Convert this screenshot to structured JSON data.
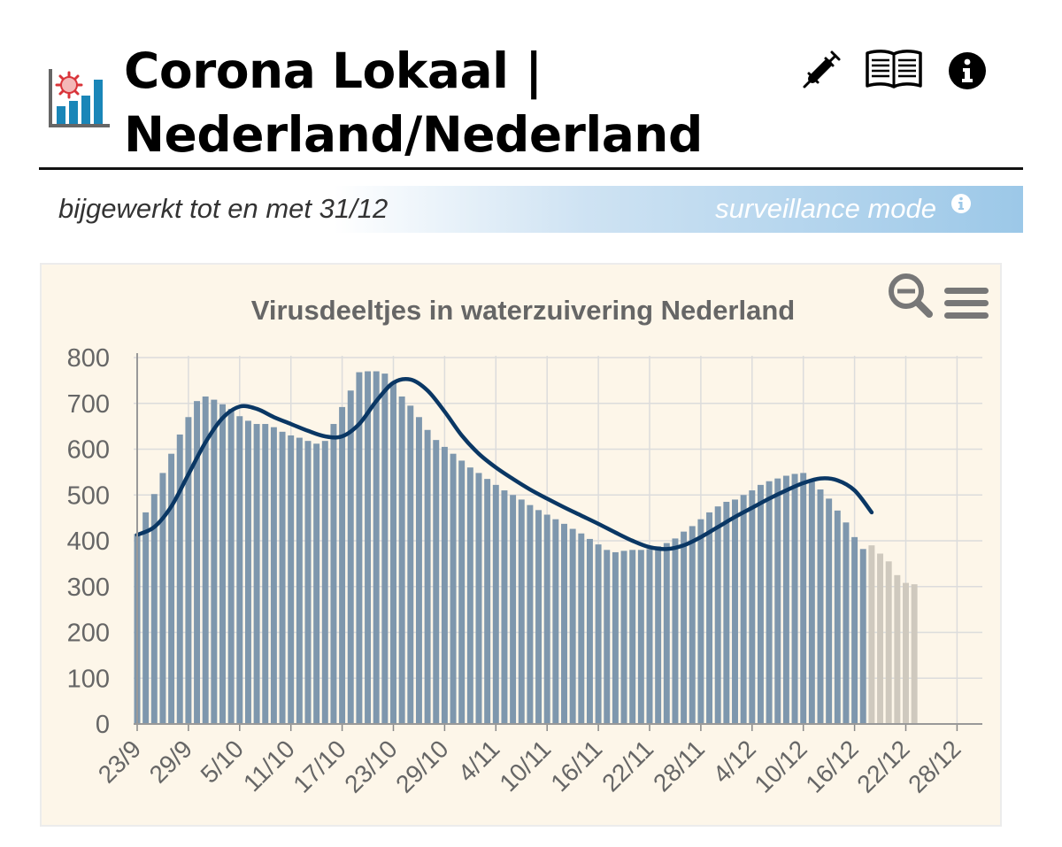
{
  "header": {
    "title_line1": "Corona Lokaal |",
    "title_line2": "Nederland/Nederland",
    "icons": [
      "chart-virus-logo-icon",
      "syringe-icon",
      "book-icon",
      "info-icon"
    ]
  },
  "update_bar": {
    "updated_text": "bijgewerkt tot en met 31/12",
    "mode_text": "surveillance mode"
  },
  "colors": {
    "bar": "#7e97ad",
    "bar_projected": "#cfc9be",
    "line": "#0a3764",
    "card_bg": "#fdf6e9",
    "grid": "#dcdcdc",
    "axis_text": "#666666",
    "bar_gradient_end": "#9cc8e8"
  },
  "chart_data": {
    "type": "bar",
    "title": "Virusdeeltjes in waterzuivering Nederland",
    "xlabel": "",
    "ylabel": "",
    "ylim": [
      0,
      800
    ],
    "yticks": [
      0,
      100,
      200,
      300,
      400,
      500,
      600,
      700,
      800
    ],
    "x_tick_labels": [
      "23/9",
      "29/9",
      "5/10",
      "11/10",
      "17/10",
      "23/10",
      "29/10",
      "4/11",
      "10/11",
      "16/11",
      "22/11",
      "28/11",
      "4/12",
      "10/12",
      "16/12",
      "22/12",
      "28/12"
    ],
    "x_tick_spacing_days": 6,
    "grid": true,
    "toolbar_icons": [
      "zoom-out-icon",
      "menu-icon"
    ],
    "series": [
      {
        "type": "bar",
        "start_date": "23/9",
        "values": [
          415,
          462,
          502,
          548,
          590,
          632,
          670,
          705,
          715,
          708,
          698,
          688,
          672,
          662,
          655,
          655,
          648,
          638,
          630,
          625,
          618,
          612,
          618,
          655,
          692,
          728,
          768,
          770,
          770,
          765,
          745,
          715,
          695,
          670,
          642,
          620,
          605,
          590,
          575,
          560,
          548,
          535,
          522,
          510,
          500,
          490,
          478,
          467,
          457,
          447,
          437,
          426,
          416,
          404,
          392,
          380,
          375,
          378,
          380,
          380,
          382,
          388,
          395,
          405,
          420,
          432,
          447,
          462,
          475,
          485,
          490,
          500,
          510,
          522,
          530,
          536,
          542,
          546,
          548,
          532,
          512,
          492,
          466,
          440,
          408,
          382
        ],
        "color": "#7e97ad"
      },
      {
        "type": "bar",
        "start_date": "18/12",
        "values": [
          390,
          372,
          355,
          325,
          308,
          305
        ],
        "color": "#cfc9be"
      },
      {
        "type": "line",
        "points": [
          [
            "23/9",
            413
          ],
          [
            "25/9",
            430
          ],
          [
            "27/9",
            475
          ],
          [
            "29/9",
            545
          ],
          [
            "1/10",
            615
          ],
          [
            "3/10",
            668
          ],
          [
            "5/10",
            693
          ],
          [
            "7/10",
            688
          ],
          [
            "9/10",
            670
          ],
          [
            "11/10",
            655
          ],
          [
            "13/10",
            640
          ],
          [
            "15/10",
            628
          ],
          [
            "17/10",
            628
          ],
          [
            "19/10",
            655
          ],
          [
            "21/10",
            705
          ],
          [
            "23/10",
            745
          ],
          [
            "25/10",
            752
          ],
          [
            "27/10",
            728
          ],
          [
            "29/10",
            682
          ],
          [
            "31/10",
            630
          ],
          [
            "2/11",
            590
          ],
          [
            "4/11",
            560
          ],
          [
            "6/11",
            535
          ],
          [
            "8/11",
            512
          ],
          [
            "10/11",
            492
          ],
          [
            "12/11",
            473
          ],
          [
            "14/11",
            455
          ],
          [
            "16/11",
            437
          ],
          [
            "18/11",
            418
          ],
          [
            "20/11",
            400
          ],
          [
            "22/11",
            386
          ],
          [
            "24/11",
            382
          ],
          [
            "26/11",
            390
          ],
          [
            "28/11",
            408
          ],
          [
            "30/11",
            430
          ],
          [
            "2/12",
            452
          ],
          [
            "4/12",
            472
          ],
          [
            "6/12",
            492
          ],
          [
            "8/12",
            510
          ],
          [
            "10/12",
            526
          ],
          [
            "12/12",
            536
          ],
          [
            "14/12",
            532
          ],
          [
            "16/12",
            510
          ],
          [
            "18/12",
            462
          ]
        ],
        "color": "#0a3764"
      }
    ]
  }
}
